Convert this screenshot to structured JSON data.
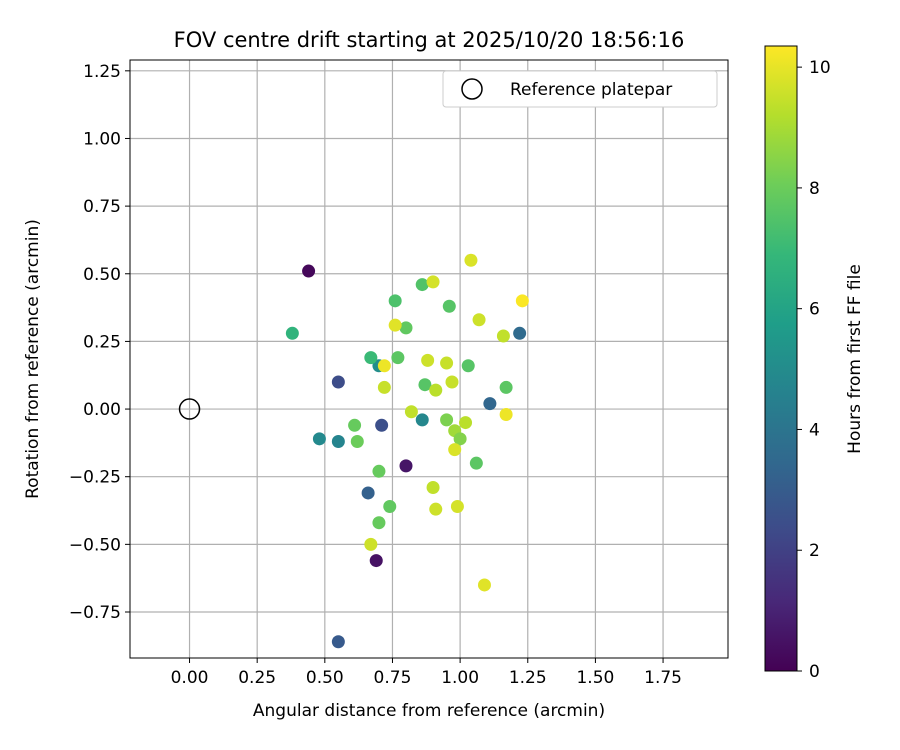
{
  "chart_data": {
    "type": "scatter",
    "title": "FOV centre drift starting at 2025/10/20 18:56:16",
    "xlabel": "Angular distance from reference (arcmin)",
    "ylabel": "Rotation from reference (arcmin)",
    "xlim": [
      -0.22,
      1.99
    ],
    "ylim": [
      -0.92,
      1.29
    ],
    "xticks": [
      0.0,
      0.25,
      0.5,
      0.75,
      1.0,
      1.25,
      1.5,
      1.75
    ],
    "xtick_labels": [
      "0.00",
      "0.25",
      "0.50",
      "0.75",
      "1.00",
      "1.25",
      "1.50",
      "1.75"
    ],
    "yticks": [
      -0.75,
      -0.5,
      -0.25,
      0.0,
      0.25,
      0.5,
      0.75,
      1.0,
      1.25
    ],
    "ytick_labels": [
      "−0.75",
      "−0.50",
      "−0.25",
      "0.00",
      "0.25",
      "0.50",
      "0.75",
      "1.00",
      "1.25"
    ],
    "grid": true,
    "legend": {
      "position": "top-right",
      "label": "Reference platepar",
      "marker": "open-circle"
    },
    "reference_point": {
      "x": 0.0,
      "y": 0.0
    },
    "colorbar": {
      "label": "Hours from first FF file",
      "colormap": "viridis",
      "range": [
        0,
        10.35
      ],
      "ticks": [
        0,
        2,
        4,
        6,
        8,
        10
      ],
      "tick_labels": [
        "0",
        "2",
        "4",
        "6",
        "8",
        "10"
      ]
    },
    "points": [
      {
        "x": 0.44,
        "y": 0.51,
        "c": 0.2
      },
      {
        "x": 0.69,
        "y": -0.56,
        "c": 0.5
      },
      {
        "x": 0.8,
        "y": -0.21,
        "c": 0.6
      },
      {
        "x": 0.55,
        "y": -0.86,
        "c": 2.9
      },
      {
        "x": 0.55,
        "y": 0.1,
        "c": 2.4
      },
      {
        "x": 0.71,
        "y": -0.06,
        "c": 2.5
      },
      {
        "x": 0.66,
        "y": -0.31,
        "c": 3.2
      },
      {
        "x": 1.11,
        "y": 0.02,
        "c": 3.4
      },
      {
        "x": 1.22,
        "y": 0.28,
        "c": 3.6
      },
      {
        "x": 0.48,
        "y": -0.11,
        "c": 4.9
      },
      {
        "x": 0.55,
        "y": -0.12,
        "c": 4.7
      },
      {
        "x": 0.86,
        "y": -0.04,
        "c": 4.8
      },
      {
        "x": 0.7,
        "y": 0.16,
        "c": 5.1
      },
      {
        "x": 0.38,
        "y": 0.28,
        "c": 6.7
      },
      {
        "x": 0.67,
        "y": 0.19,
        "c": 7.0
      },
      {
        "x": 0.77,
        "y": 0.19,
        "c": 7.7
      },
      {
        "x": 0.76,
        "y": 0.4,
        "c": 7.4
      },
      {
        "x": 0.8,
        "y": 0.3,
        "c": 7.8
      },
      {
        "x": 0.86,
        "y": 0.46,
        "c": 7.5
      },
      {
        "x": 0.96,
        "y": 0.38,
        "c": 7.6
      },
      {
        "x": 0.87,
        "y": 0.09,
        "c": 7.6
      },
      {
        "x": 1.03,
        "y": 0.16,
        "c": 7.6
      },
      {
        "x": 1.17,
        "y": 0.08,
        "c": 7.7
      },
      {
        "x": 0.61,
        "y": -0.06,
        "c": 7.9
      },
      {
        "x": 0.62,
        "y": -0.12,
        "c": 8.0
      },
      {
        "x": 0.7,
        "y": -0.23,
        "c": 7.9
      },
      {
        "x": 0.74,
        "y": -0.36,
        "c": 7.8
      },
      {
        "x": 0.7,
        "y": -0.42,
        "c": 7.9
      },
      {
        "x": 1.06,
        "y": -0.2,
        "c": 7.7
      },
      {
        "x": 0.95,
        "y": -0.04,
        "c": 8.3
      },
      {
        "x": 0.98,
        "y": -0.08,
        "c": 8.9
      },
      {
        "x": 1.0,
        "y": -0.11,
        "c": 8.4
      },
      {
        "x": 0.9,
        "y": 0.47,
        "c": 9.7
      },
      {
        "x": 1.04,
        "y": 0.55,
        "c": 9.8
      },
      {
        "x": 0.76,
        "y": 0.31,
        "c": 9.9
      },
      {
        "x": 1.07,
        "y": 0.33,
        "c": 9.6
      },
      {
        "x": 1.23,
        "y": 0.4,
        "c": 10.3
      },
      {
        "x": 1.16,
        "y": 0.27,
        "c": 9.4
      },
      {
        "x": 0.88,
        "y": 0.18,
        "c": 9.6
      },
      {
        "x": 0.95,
        "y": 0.17,
        "c": 9.5
      },
      {
        "x": 0.72,
        "y": 0.16,
        "c": 10.1
      },
      {
        "x": 0.72,
        "y": 0.08,
        "c": 9.5
      },
      {
        "x": 0.91,
        "y": 0.07,
        "c": 9.3
      },
      {
        "x": 0.97,
        "y": 0.1,
        "c": 9.5
      },
      {
        "x": 0.82,
        "y": -0.01,
        "c": 9.4
      },
      {
        "x": 1.02,
        "y": -0.05,
        "c": 9.3
      },
      {
        "x": 1.17,
        "y": -0.02,
        "c": 10.1
      },
      {
        "x": 0.98,
        "y": -0.15,
        "c": 9.8
      },
      {
        "x": 0.9,
        "y": -0.29,
        "c": 9.4
      },
      {
        "x": 0.91,
        "y": -0.37,
        "c": 9.6
      },
      {
        "x": 0.99,
        "y": -0.36,
        "c": 9.7
      },
      {
        "x": 0.67,
        "y": -0.5,
        "c": 9.6
      },
      {
        "x": 1.09,
        "y": -0.65,
        "c": 9.9
      }
    ]
  }
}
